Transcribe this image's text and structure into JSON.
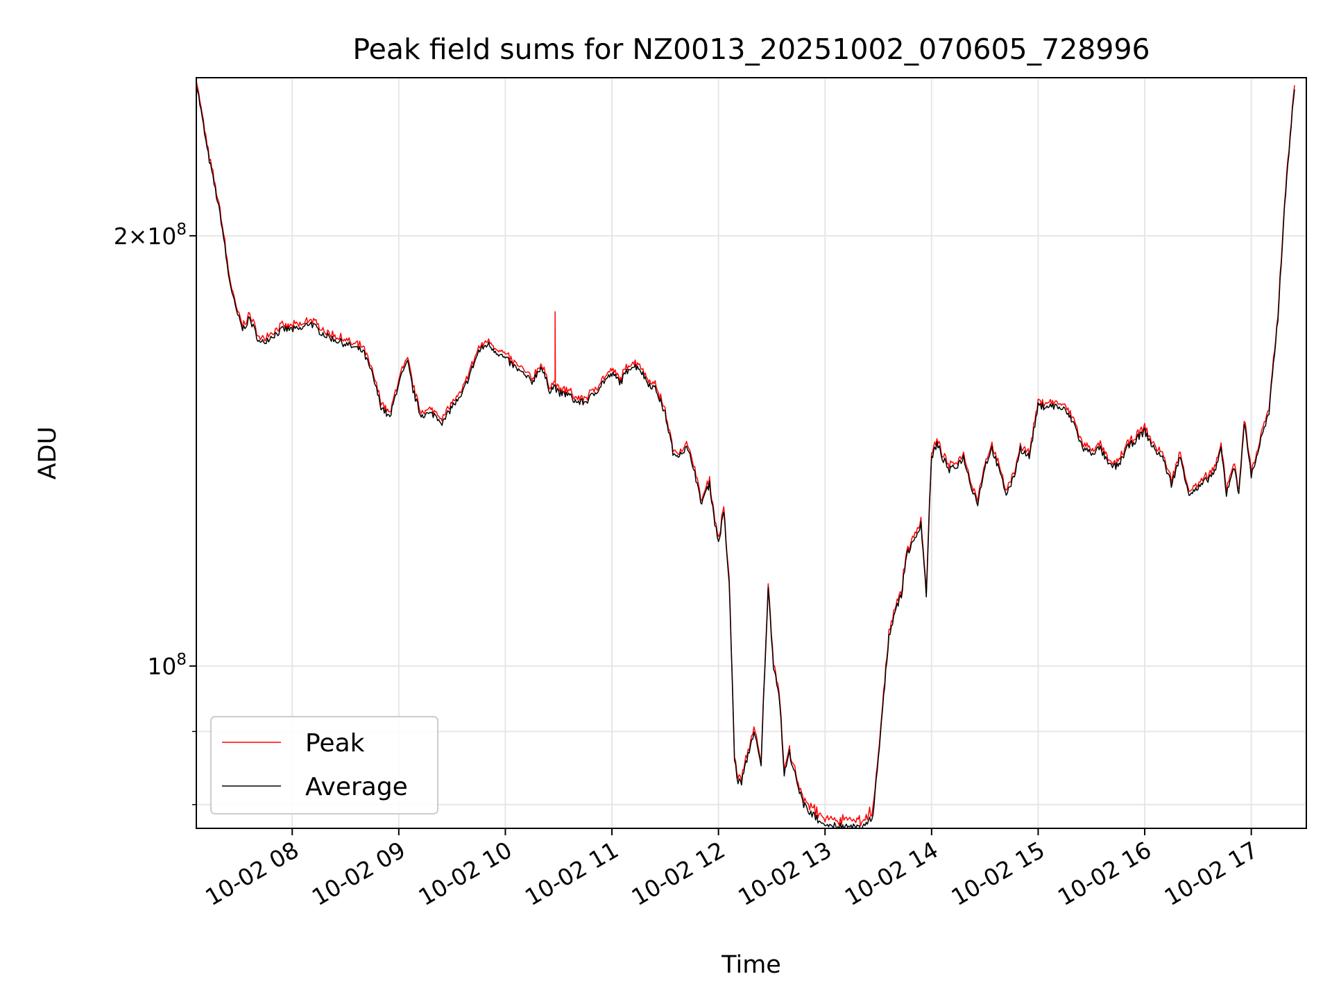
{
  "chart_data": {
    "type": "line",
    "title": "Peak field sums for NZ0013_20251002_070605_728996",
    "xlabel": "Time",
    "ylabel": "ADU",
    "x_ticks": [
      "10-02 08",
      "10-02 09",
      "10-02 10",
      "10-02 11",
      "10-02 12",
      "10-02 13",
      "10-02 14",
      "10-02 15",
      "10-02 16",
      "10-02 17"
    ],
    "y_scale": "log",
    "y_ticks": [
      {
        "value": 100000000,
        "base": "10",
        "exp": "8"
      },
      {
        "value": 200000000,
        "base": "2×10",
        "exp": "8"
      }
    ],
    "xlim": [
      "2025-10-02 07:06",
      "2025-10-02 17:31"
    ],
    "ylim": [
      77000000,
      258000000
    ],
    "grid": true,
    "legend_position": "lower-left",
    "colors": {
      "peak": "#ff0000",
      "average": "#000000"
    },
    "series": [
      {
        "name": "Peak",
        "color": "#ff0000"
      },
      {
        "name": "Average",
        "color": "#000000"
      }
    ],
    "x": [
      "2025-10-02 07:06",
      "2025-10-02 07:12",
      "2025-10-02 07:20",
      "2025-10-02 07:24",
      "2025-10-02 07:28",
      "2025-10-02 07:32",
      "2025-10-02 07:36",
      "2025-10-02 07:42",
      "2025-10-02 07:48",
      "2025-10-02 07:55",
      "2025-10-02 08:05",
      "2025-10-02 08:10",
      "2025-10-02 08:14",
      "2025-10-02 08:20",
      "2025-10-02 08:30",
      "2025-10-02 08:40",
      "2025-10-02 08:45",
      "2025-10-02 08:50",
      "2025-10-02 08:55",
      "2025-10-02 09:00",
      "2025-10-02 09:05",
      "2025-10-02 09:08",
      "2025-10-02 09:12",
      "2025-10-02 09:15",
      "2025-10-02 09:20",
      "2025-10-02 09:25",
      "2025-10-02 09:30",
      "2025-10-02 09:35",
      "2025-10-02 09:40",
      "2025-10-02 09:45",
      "2025-10-02 09:50",
      "2025-10-02 09:55",
      "2025-10-02 10:00",
      "2025-10-02 10:05",
      "2025-10-02 10:10",
      "2025-10-02 10:15",
      "2025-10-02 10:20",
      "2025-10-02 10:25",
      "2025-10-02 10:28",
      "2025-10-02 10:30",
      "2025-10-02 10:35",
      "2025-10-02 10:40",
      "2025-10-02 10:45",
      "2025-10-02 10:50",
      "2025-10-02 10:55",
      "2025-10-02 11:00",
      "2025-10-02 11:05",
      "2025-10-02 11:10",
      "2025-10-02 11:15",
      "2025-10-02 11:20",
      "2025-10-02 11:25",
      "2025-10-02 11:30",
      "2025-10-02 11:35",
      "2025-10-02 11:38",
      "2025-10-02 11:42",
      "2025-10-02 11:46",
      "2025-10-02 11:50",
      "2025-10-02 11:55",
      "2025-10-02 11:58",
      "2025-10-02 12:00",
      "2025-10-02 12:03",
      "2025-10-02 12:06",
      "2025-10-02 12:09",
      "2025-10-02 12:11",
      "2025-10-02 12:13",
      "2025-10-02 12:16",
      "2025-10-02 12:20",
      "2025-10-02 12:24",
      "2025-10-02 12:28",
      "2025-10-02 12:31",
      "2025-10-02 12:34",
      "2025-10-02 12:37",
      "2025-10-02 12:40",
      "2025-10-02 12:43",
      "2025-10-02 12:45",
      "2025-10-02 12:48",
      "2025-10-02 12:52",
      "2025-10-02 12:56",
      "2025-10-02 13:00",
      "2025-10-02 13:10",
      "2025-10-02 13:20",
      "2025-10-02 13:27",
      "2025-10-02 13:30",
      "2025-10-02 13:33",
      "2025-10-02 13:36",
      "2025-10-02 13:40",
      "2025-10-02 13:43",
      "2025-10-02 13:46",
      "2025-10-02 13:50",
      "2025-10-02 13:54",
      "2025-10-02 13:57",
      "2025-10-02 14:00",
      "2025-10-02 14:03",
      "2025-10-02 14:06",
      "2025-10-02 14:10",
      "2025-10-02 14:14",
      "2025-10-02 14:18",
      "2025-10-02 14:22",
      "2025-10-02 14:26",
      "2025-10-02 14:30",
      "2025-10-02 14:34",
      "2025-10-02 14:38",
      "2025-10-02 14:42",
      "2025-10-02 14:46",
      "2025-10-02 14:50",
      "2025-10-02 14:55",
      "2025-10-02 15:00",
      "2025-10-02 15:05",
      "2025-10-02 15:10",
      "2025-10-02 15:15",
      "2025-10-02 15:20",
      "2025-10-02 15:25",
      "2025-10-02 15:30",
      "2025-10-02 15:35",
      "2025-10-02 15:40",
      "2025-10-02 15:45",
      "2025-10-02 15:50",
      "2025-10-02 15:55",
      "2025-10-02 16:00",
      "2025-10-02 16:05",
      "2025-10-02 16:10",
      "2025-10-02 16:15",
      "2025-10-02 16:20",
      "2025-10-02 16:25",
      "2025-10-02 16:30",
      "2025-10-02 16:35",
      "2025-10-02 16:40",
      "2025-10-02 16:43",
      "2025-10-02 16:46",
      "2025-10-02 16:50",
      "2025-10-02 16:53",
      "2025-10-02 16:56",
      "2025-10-02 17:00",
      "2025-10-02 17:03",
      "2025-10-02 17:06",
      "2025-10-02 17:10",
      "2025-10-02 17:15",
      "2025-10-02 17:20",
      "2025-10-02 17:25",
      "2025-10-02 17:31"
    ],
    "average": [
      256,
      230,
      205,
      188,
      178,
      172,
      175,
      168,
      170,
      172,
      172,
      174,
      172,
      170,
      168,
      166,
      160,
      152,
      149,
      158,
      163,
      156,
      150,
      150,
      150,
      148,
      152,
      154,
      160,
      166,
      168,
      166,
      164,
      162,
      160,
      158,
      162,
      156,
      157,
      155,
      155,
      153,
      153,
      155,
      158,
      160,
      158,
      162,
      162,
      158,
      156,
      150,
      140,
      141,
      142,
      138,
      130,
      134,
      126,
      122,
      128,
      114,
      86,
      83,
      83,
      86,
      90,
      85,
      113,
      100,
      96,
      84,
      87,
      84,
      82,
      80,
      79,
      78,
      77.5,
      77.2,
      77,
      78.5,
      86,
      95,
      105,
      110,
      112,
      120,
      122,
      126,
      112,
      140,
      143,
      140,
      137,
      138,
      140,
      134,
      130,
      138,
      142,
      137,
      132,
      135,
      142,
      140,
      152,
      152,
      152,
      151,
      148,
      142,
      141,
      142,
      138,
      138,
      142,
      144,
      146,
      142,
      140,
      134,
      140,
      132,
      133,
      135,
      137,
      142,
      132,
      138,
      132,
      148,
      136,
      140,
      145,
      150,
      175,
      220,
      258
    ],
    "peak_spike": {
      "x": "2025-10-02 10:28",
      "value": 177
    }
  }
}
